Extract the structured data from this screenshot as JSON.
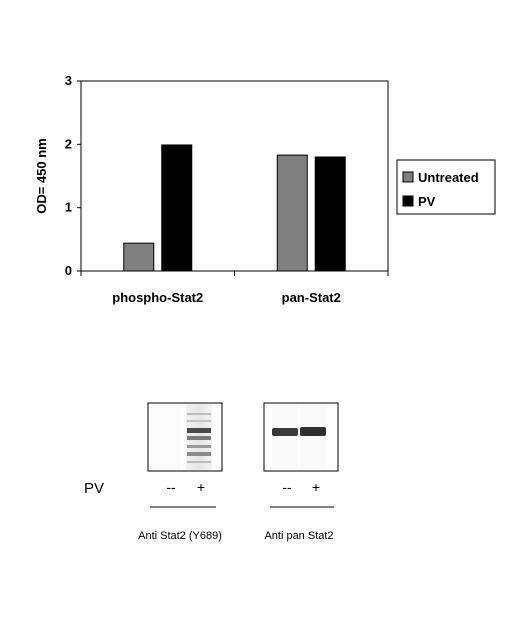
{
  "chart_data": {
    "type": "bar",
    "categories": [
      "phospho-Stat2",
      "pan-Stat2"
    ],
    "series": [
      {
        "name": "Untreated",
        "values": [
          0.44,
          1.83
        ],
        "color": "#808080"
      },
      {
        "name": "PV",
        "values": [
          1.99,
          1.8
        ],
        "color": "#000000"
      }
    ],
    "ylabel": "OD= 450 nm",
    "ylim": [
      0,
      3
    ],
    "yticks": [
      "0",
      "1",
      "2",
      "3"
    ],
    "legend_position": "right",
    "grid": false
  },
  "blot": {
    "treatment_label": "PV",
    "lane_labels": [
      "--",
      "+",
      "--",
      "+"
    ],
    "antibodies": [
      "Anti Stat2 (Y689)",
      "Anti pan Stat2"
    ],
    "colors": {
      "band_dark": "#303030",
      "box_border": "#000000"
    }
  }
}
